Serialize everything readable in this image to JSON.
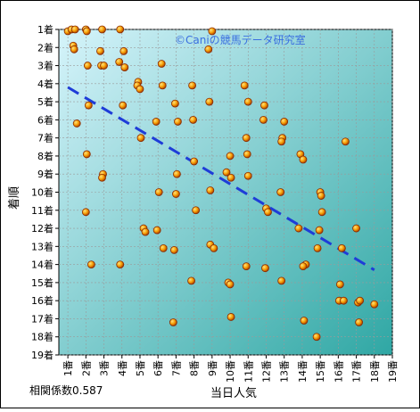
{
  "chart_data": {
    "type": "scatter",
    "title": "",
    "watermark": "©Caniの競馬データ研究室",
    "xlabel": "当日人気",
    "ylabel": "着順",
    "annotation": "相関係数0.587",
    "x_ticks": [
      "1番",
      "2番",
      "3番",
      "4番",
      "5番",
      "6番",
      "7番",
      "8番",
      "9番",
      "10番",
      "11番",
      "12番",
      "13番",
      "14番",
      "15番",
      "16番",
      "17番",
      "18番",
      "19番"
    ],
    "y_ticks": [
      "1着",
      "2着",
      "3着",
      "4着",
      "5着",
      "6着",
      "7着",
      "8着",
      "9着",
      "10着",
      "11着",
      "12着",
      "13着",
      "14着",
      "15着",
      "16着",
      "17着",
      "18着",
      "19着"
    ],
    "xlim": [
      0.5,
      19
    ],
    "ylim": [
      1,
      19
    ],
    "y_inverted": true,
    "grid": true,
    "marker_color": "#f08c00",
    "marker_edge": "#8a2a00",
    "trend_color": "#1e3cd8",
    "background_gradient": [
      "#d6f4fb",
      "#2fa7a4"
    ],
    "trend": {
      "x": [
        1,
        18
      ],
      "y": [
        4.2,
        14.3
      ]
    },
    "points": [
      [
        1.0,
        1.1
      ],
      [
        1.2,
        1.0
      ],
      [
        1.4,
        1.0
      ],
      [
        1.3,
        1.9
      ],
      [
        1.35,
        2.1
      ],
      [
        1.5,
        6.2
      ],
      [
        2.0,
        1.0
      ],
      [
        2.05,
        1.1
      ],
      [
        2.1,
        3.0
      ],
      [
        2.15,
        5.2
      ],
      [
        2.05,
        7.9
      ],
      [
        2.0,
        11.1
      ],
      [
        2.3,
        14.0
      ],
      [
        2.8,
        2.2
      ],
      [
        2.9,
        1.0
      ],
      [
        2.85,
        3.0
      ],
      [
        3.0,
        3.0
      ],
      [
        2.95,
        9.0
      ],
      [
        2.9,
        9.2
      ],
      [
        3.9,
        1.0
      ],
      [
        3.85,
        2.8
      ],
      [
        4.1,
        2.2
      ],
      [
        4.15,
        3.1
      ],
      [
        4.05,
        5.2
      ],
      [
        3.9,
        14.0
      ],
      [
        4.9,
        3.9
      ],
      [
        4.85,
        4.1
      ],
      [
        5.0,
        4.3
      ],
      [
        5.05,
        7.0
      ],
      [
        5.2,
        12.0
      ],
      [
        5.3,
        12.2
      ],
      [
        5.9,
        6.1
      ],
      [
        6.05,
        10.0
      ],
      [
        5.95,
        12.1
      ],
      [
        6.2,
        2.9
      ],
      [
        6.25,
        4.1
      ],
      [
        6.3,
        13.1
      ],
      [
        6.95,
        5.1
      ],
      [
        7.1,
        6.1
      ],
      [
        7.05,
        9.0
      ],
      [
        7.0,
        10.1
      ],
      [
        6.9,
        13.2
      ],
      [
        6.85,
        17.2
      ],
      [
        7.9,
        4.1
      ],
      [
        7.95,
        6.0
      ],
      [
        8.0,
        8.3
      ],
      [
        8.1,
        11.0
      ],
      [
        7.85,
        14.9
      ],
      [
        9.0,
        1.1
      ],
      [
        8.8,
        2.1
      ],
      [
        8.85,
        5.0
      ],
      [
        8.9,
        9.9
      ],
      [
        8.9,
        12.9
      ],
      [
        9.1,
        13.1
      ],
      [
        9.8,
        8.9
      ],
      [
        10.0,
        8.0
      ],
      [
        10.05,
        9.2
      ],
      [
        9.9,
        15.0
      ],
      [
        10.0,
        15.1
      ],
      [
        10.05,
        16.9
      ],
      [
        10.8,
        4.1
      ],
      [
        11.0,
        5.0
      ],
      [
        10.9,
        7.0
      ],
      [
        10.95,
        7.9
      ],
      [
        11.0,
        9.1
      ],
      [
        10.9,
        14.1
      ],
      [
        11.9,
        5.2
      ],
      [
        11.85,
        6.0
      ],
      [
        12.0,
        10.9
      ],
      [
        12.1,
        11.1
      ],
      [
        11.95,
        14.2
      ],
      [
        13.0,
        6.1
      ],
      [
        12.9,
        7.0
      ],
      [
        12.85,
        7.2
      ],
      [
        12.8,
        10.0
      ],
      [
        12.85,
        14.9
      ],
      [
        13.9,
        7.9
      ],
      [
        14.05,
        8.2
      ],
      [
        13.8,
        12.0
      ],
      [
        14.2,
        14.0
      ],
      [
        14.05,
        14.1
      ],
      [
        14.1,
        17.1
      ],
      [
        15.0,
        10.0
      ],
      [
        15.05,
        10.2
      ],
      [
        15.1,
        11.1
      ],
      [
        14.95,
        12.1
      ],
      [
        14.85,
        13.1
      ],
      [
        14.8,
        18.0
      ],
      [
        16.1,
        15.1
      ],
      [
        16.05,
        16.0
      ],
      [
        16.3,
        16.0
      ],
      [
        16.4,
        7.2
      ],
      [
        16.2,
        13.1
      ],
      [
        17.0,
        12.0
      ],
      [
        17.1,
        16.1
      ],
      [
        17.2,
        16.0
      ],
      [
        17.15,
        17.2
      ],
      [
        18.0,
        16.2
      ]
    ]
  }
}
